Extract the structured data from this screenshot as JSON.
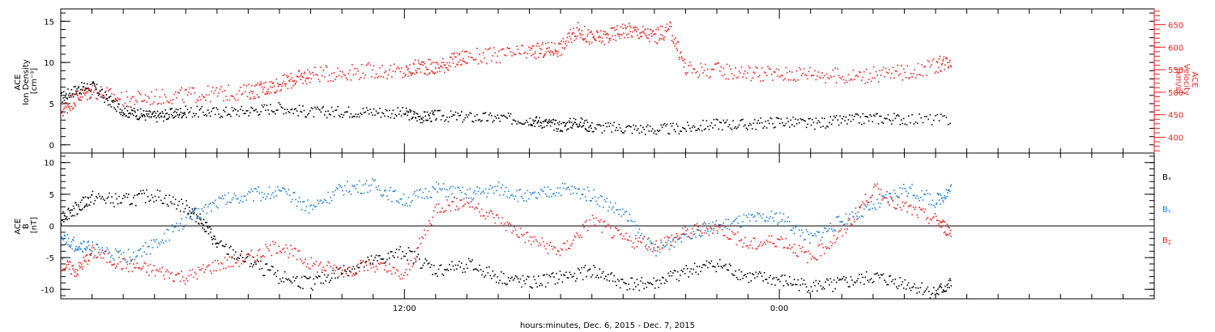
{
  "chart_data": [
    {
      "type": "scatter",
      "panel": "top",
      "left_axis": {
        "label_lines": [
          "ACE",
          "Ion Density",
          "[cm⁻³]"
        ],
        "ylim": [
          -1,
          16.5
        ],
        "ticks": [
          0,
          5,
          10,
          15
        ],
        "color": "#000000"
      },
      "right_axis": {
        "label_lines": [
          "ACE",
          "Velocity",
          "[km/s]"
        ],
        "ylim": [
          365,
          685
        ],
        "ticks": [
          400,
          450,
          500,
          550,
          600,
          650
        ],
        "color": "#e8231f"
      },
      "series": [
        {
          "axis": "left",
          "color": "#000000",
          "x": [
            0,
            0.5,
            1,
            1.5,
            2,
            2.5,
            3,
            3.5,
            4,
            5,
            6,
            7,
            8,
            9,
            10,
            11,
            11.5,
            12,
            13,
            14,
            15,
            15.5,
            16,
            16.5,
            17,
            18,
            19,
            20,
            21,
            22,
            23,
            24,
            25,
            26,
            27,
            28.5
          ],
          "y": [
            5.8,
            6.8,
            7.2,
            5.5,
            4.2,
            3.8,
            3.5,
            3.8,
            4.1,
            4.0,
            4.2,
            4.6,
            4.0,
            4.1,
            4.1,
            3.9,
            3.4,
            3.6,
            3.4,
            3.3,
            3.1,
            2.7,
            2.3,
            2.9,
            2.2,
            2.1,
            1.9,
            2.1,
            2.6,
            2.5,
            2.9,
            2.6,
            3.0,
            3.3,
            3.2,
            3.1
          ]
        },
        {
          "axis": "right",
          "color": "#e8231f",
          "x": [
            0,
            0.5,
            1,
            2,
            3,
            4,
            5,
            6,
            6.5,
            7,
            7.5,
            8,
            9,
            10,
            11,
            11.5,
            12,
            12.5,
            13,
            14,
            15,
            15.5,
            16,
            16.5,
            17,
            17.5,
            18,
            18.5,
            19,
            19.5,
            20,
            21,
            22,
            23,
            24,
            25,
            26,
            27,
            28,
            28.5
          ],
          "y": [
            460,
            490,
            505,
            485,
            490,
            495,
            498,
            502,
            510,
            520,
            530,
            540,
            545,
            550,
            545,
            560,
            555,
            570,
            580,
            583,
            590,
            595,
            600,
            640,
            620,
            625,
            640,
            635,
            625,
            640,
            552,
            550,
            545,
            540,
            545,
            535,
            540,
            545,
            560,
            575
          ]
        }
      ]
    },
    {
      "type": "scatter",
      "panel": "bottom",
      "left_axis": {
        "label_lines": [
          "ACE",
          "B",
          "[nT]"
        ],
        "ylim": [
          -11.5,
          11.5
        ],
        "ticks": [
          -10,
          -5,
          0,
          5,
          10
        ],
        "color": "#000000"
      },
      "zero_line": true,
      "legend": [
        {
          "label": "Bₓ",
          "color": "#000000"
        },
        {
          "label": "Bᵧ",
          "color": "#1c7fd4"
        },
        {
          "label": "B𝓏",
          "color": "#e8231f"
        }
      ],
      "series": [
        {
          "name": "Bₓ",
          "color": "#000000",
          "x": [
            0,
            0.5,
            1,
            2,
            3,
            4,
            4.5,
            5,
            6,
            7,
            8,
            9,
            10,
            11,
            12,
            13,
            14,
            15,
            16,
            17,
            18,
            19,
            20,
            21,
            22,
            23,
            24,
            25,
            26,
            27,
            28,
            28.5
          ],
          "y": [
            1.5,
            3,
            4.5,
            4,
            5,
            3,
            1,
            -3,
            -5.5,
            -8,
            -9,
            -7,
            -5.5,
            -4,
            -7,
            -6,
            -8,
            -9,
            -8,
            -7,
            -9,
            -9,
            -7,
            -6,
            -8,
            -8.5,
            -9.5,
            -9,
            -8,
            -9,
            -10.5,
            -9
          ]
        },
        {
          "name": "Bᵧ",
          "color": "#1c7fd4",
          "x": [
            0,
            0.5,
            1,
            2,
            3,
            4,
            5,
            6,
            7,
            8,
            9,
            10,
            11,
            12,
            13,
            14,
            15,
            16,
            17,
            18,
            19,
            20,
            21,
            22,
            23,
            24,
            25,
            26,
            27,
            28,
            28.5
          ],
          "y": [
            -2,
            -3,
            -3.5,
            -5,
            -3,
            1,
            4,
            5,
            5.5,
            3,
            6,
            6.5,
            4,
            6,
            5,
            6,
            4.5,
            6,
            5,
            2,
            -4,
            -1,
            0,
            1,
            1.5,
            -2,
            1,
            3,
            6,
            4,
            6
          ]
        },
        {
          "name": "B𝓏",
          "color": "#e8231f",
          "x": [
            0,
            0.5,
            1,
            2,
            3,
            4,
            5,
            6,
            7,
            8,
            9,
            10,
            11,
            12,
            13,
            14,
            15,
            16,
            17,
            18,
            19,
            20,
            21,
            22,
            23,
            24,
            25,
            26,
            27,
            28,
            28.5
          ],
          "y": [
            -6,
            -7,
            -4,
            -6,
            -7,
            -8,
            -6,
            -5,
            -3,
            -6,
            -7,
            -6,
            -8,
            3,
            4,
            1,
            -2,
            -4,
            1,
            -2,
            -3,
            -1,
            0,
            -3,
            -2,
            -5,
            -1,
            6,
            3,
            1,
            -1
          ]
        }
      ]
    }
  ],
  "x_axis": {
    "xlim": [
      0,
      35
    ],
    "tick_labels": [
      {
        "x": 11,
        "label": "12:00"
      },
      {
        "x": 23,
        "label": "0:00"
      }
    ],
    "xlabel": "hours:minutes, Dec.  6, 2015 - Dec.  7, 2015"
  }
}
